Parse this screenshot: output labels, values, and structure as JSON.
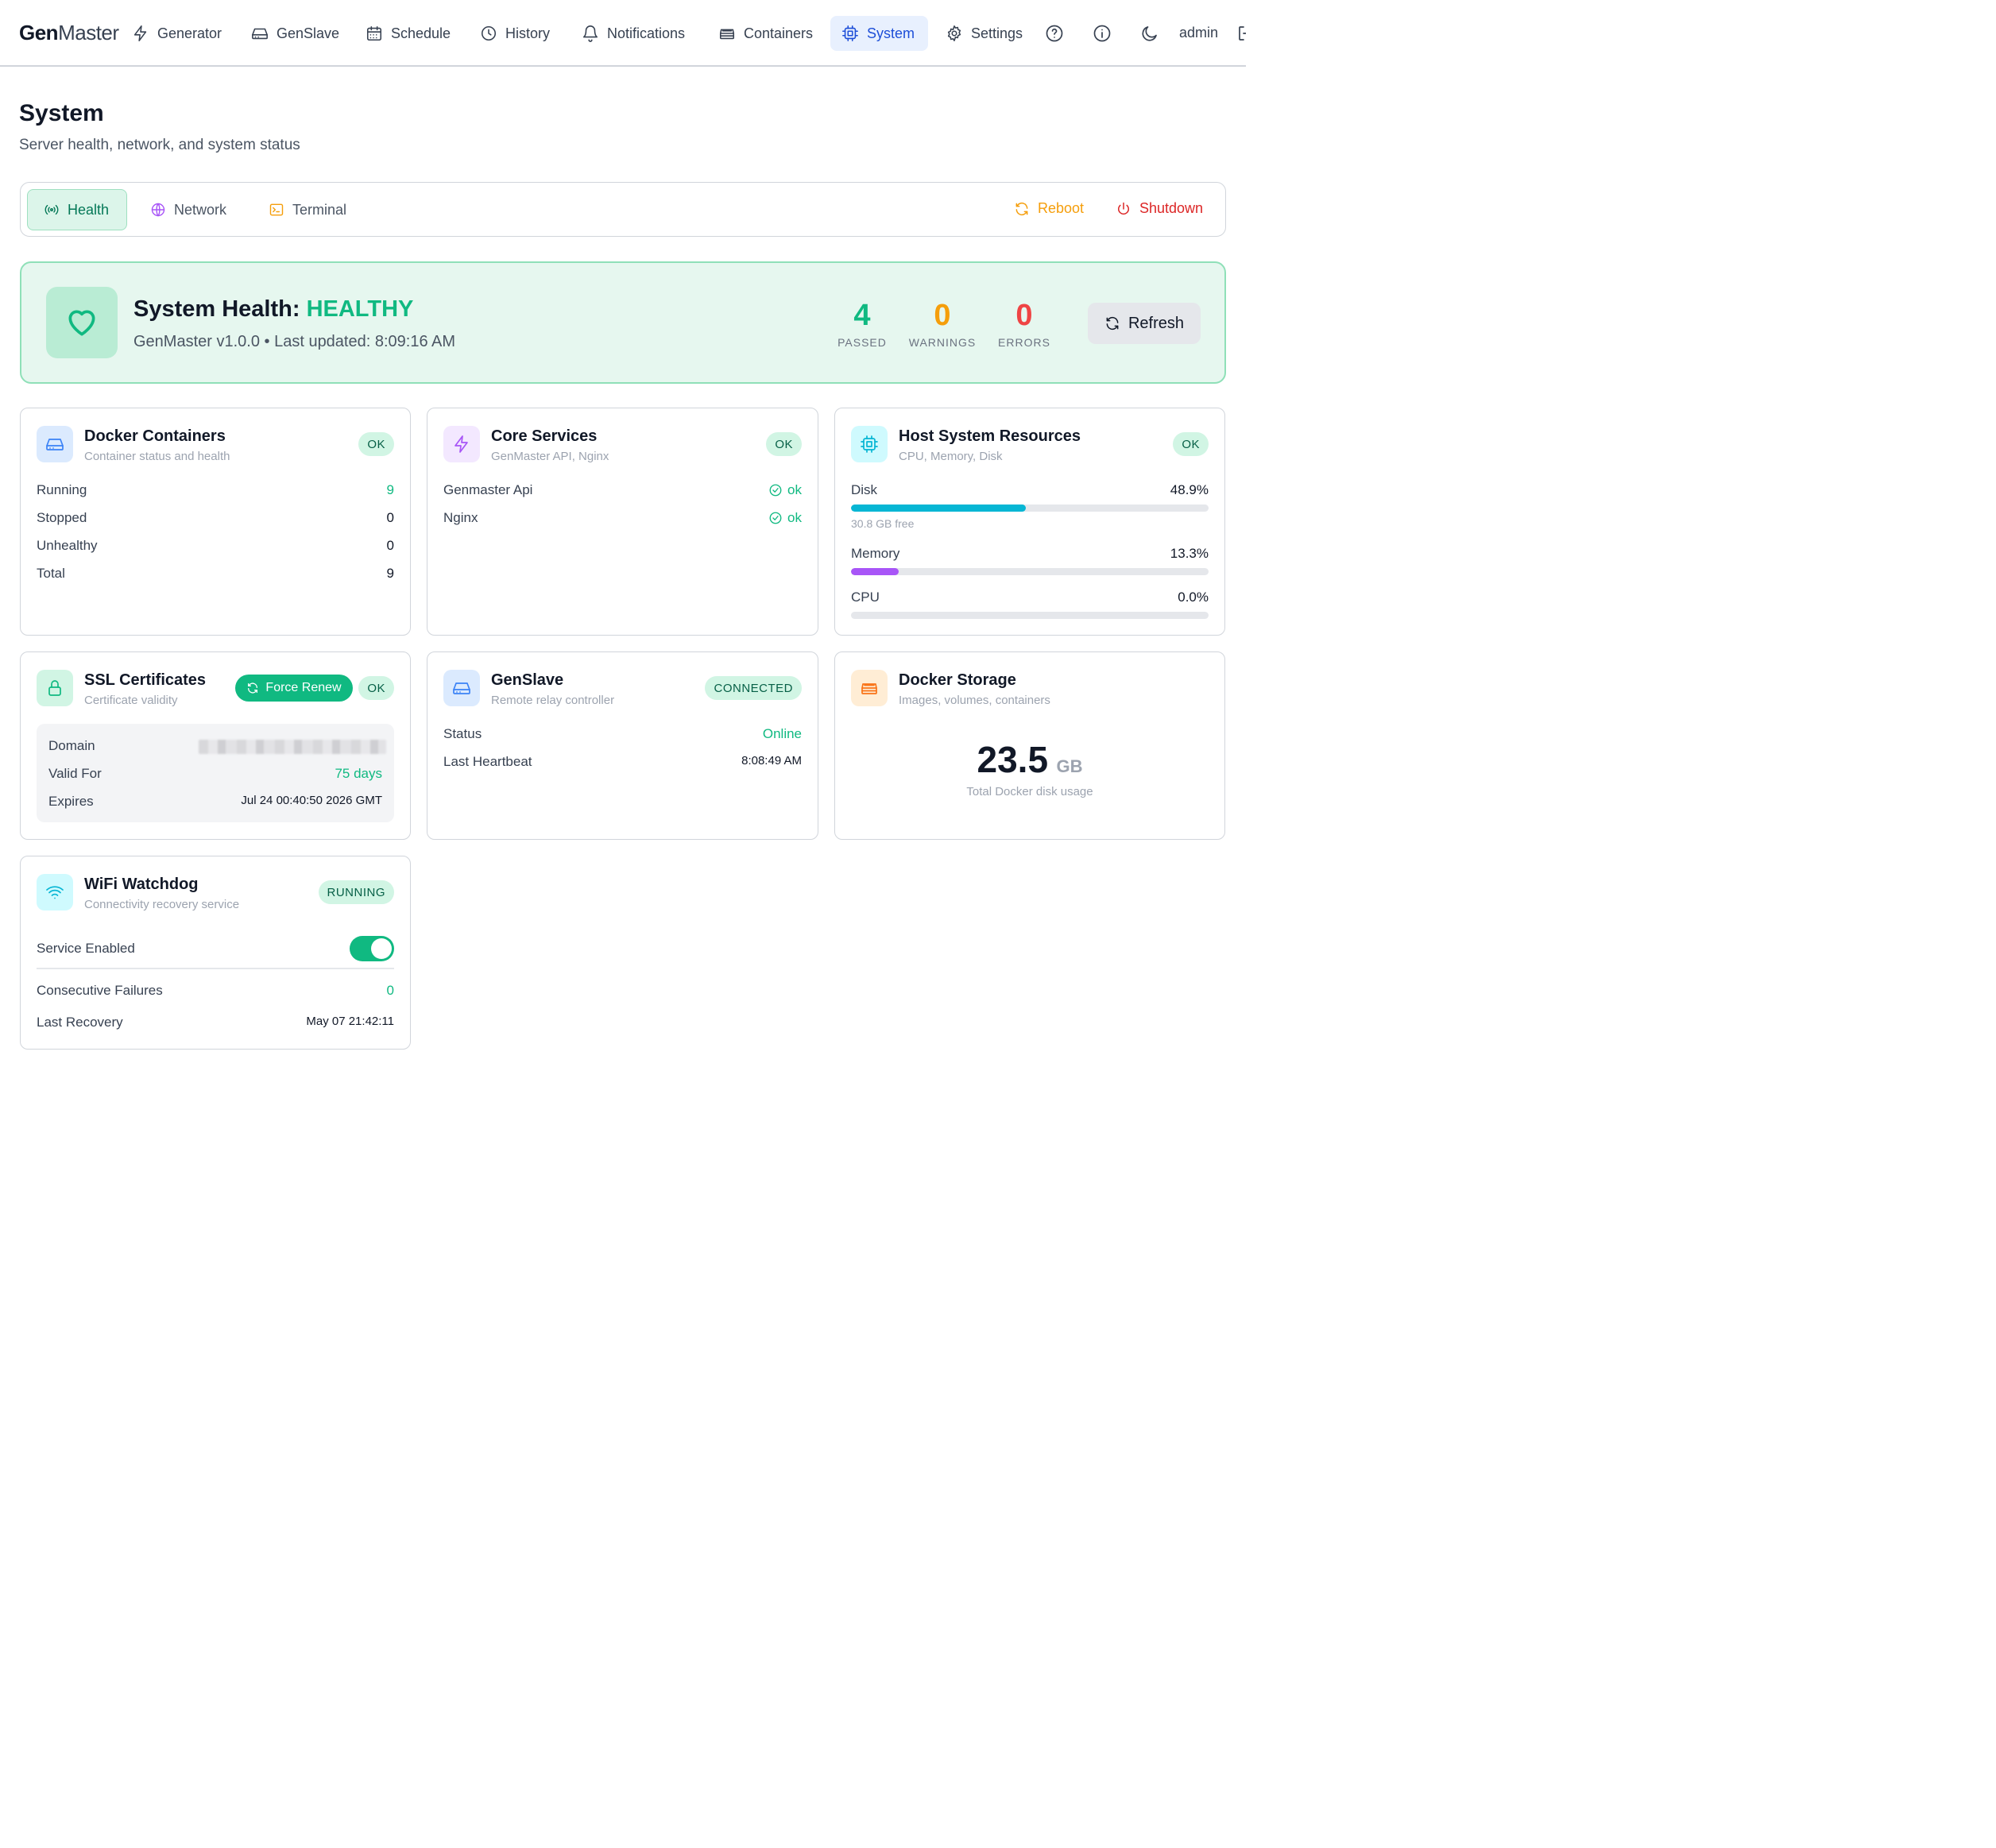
{
  "nav": {
    "logo_bold": "Gen",
    "logo_light": "Master",
    "items": [
      {
        "label": "Generator",
        "icon": "lightning-icon"
      },
      {
        "label": "GenSlave",
        "icon": "drive-icon"
      },
      {
        "label": "Schedule",
        "icon": "calendar-icon"
      },
      {
        "label": "History",
        "icon": "clock-icon"
      },
      {
        "label": "Notifications",
        "icon": "bell-icon"
      },
      {
        "label": "Containers",
        "icon": "server-icon"
      },
      {
        "label": "System",
        "icon": "cpu-icon",
        "active": true
      },
      {
        "label": "Settings",
        "icon": "gear-icon"
      }
    ],
    "user": "admin"
  },
  "page": {
    "title": "System",
    "subtitle": "Server health, network, and system status"
  },
  "tabs": {
    "items": [
      {
        "label": "Health",
        "icon": "signal-icon",
        "active": true
      },
      {
        "label": "Network",
        "icon": "globe-icon"
      },
      {
        "label": "Terminal",
        "icon": "terminal-icon"
      }
    ],
    "reboot_label": "Reboot",
    "shutdown_label": "Shutdown"
  },
  "health": {
    "title_prefix": "System Health:",
    "status": "HEALTHY",
    "subtitle": "GenMaster v1.0.0 • Last updated: 8:09:16 AM",
    "passed": "4",
    "passed_label": "PASSED",
    "warnings": "0",
    "warnings_label": "WARNINGS",
    "errors": "0",
    "errors_label": "ERRORS",
    "refresh_label": "Refresh"
  },
  "docker": {
    "title": "Docker Containers",
    "subtitle": "Container status and health",
    "badge": "OK",
    "rows": [
      {
        "label": "Running",
        "value": "9"
      },
      {
        "label": "Stopped",
        "value": "0"
      },
      {
        "label": "Unhealthy",
        "value": "0"
      },
      {
        "label": "Total",
        "value": "9"
      }
    ]
  },
  "core": {
    "title": "Core Services",
    "subtitle": "GenMaster API, Nginx",
    "badge": "OK",
    "rows": [
      {
        "label": "Genmaster Api",
        "value": "ok"
      },
      {
        "label": "Nginx",
        "value": "ok"
      }
    ]
  },
  "host": {
    "title": "Host System Resources",
    "subtitle": "CPU, Memory, Disk",
    "badge": "OK",
    "disk_label": "Disk",
    "disk_value": "48.9%",
    "disk_pct": 48.9,
    "disk_free": "30.8 GB free",
    "memory_label": "Memory",
    "memory_value": "13.3%",
    "memory_pct": 13.3,
    "cpu_label": "CPU",
    "cpu_value": "0.0%",
    "cpu_pct": 0.0,
    "disk_color": "#06b6d4",
    "memory_color": "#a855f7"
  },
  "ssl": {
    "title": "SSL Certificates",
    "subtitle": "Certificate validity",
    "force_label": "Force Renew",
    "badge": "OK",
    "domain_label": "Domain",
    "valid_label": "Valid For",
    "valid_value": "75 days",
    "expires_label": "Expires",
    "expires_value": "Jul 24 00:40:50 2026 GMT"
  },
  "genslave": {
    "title": "GenSlave",
    "subtitle": "Remote relay controller",
    "badge": "CONNECTED",
    "status_label": "Status",
    "status_value": "Online",
    "heartbeat_label": "Last Heartbeat",
    "heartbeat_value": "8:08:49 AM"
  },
  "storage": {
    "title": "Docker Storage",
    "subtitle": "Images, volumes, containers",
    "value": "23.5",
    "unit": "GB",
    "caption": "Total Docker disk usage"
  },
  "wifi": {
    "title": "WiFi Watchdog",
    "subtitle": "Connectivity recovery service",
    "badge": "RUNNING",
    "enabled_label": "Service Enabled",
    "enabled": true,
    "failures_label": "Consecutive Failures",
    "failures_value": "0",
    "recovery_label": "Last Recovery",
    "recovery_value": "May 07 21:42:11"
  }
}
